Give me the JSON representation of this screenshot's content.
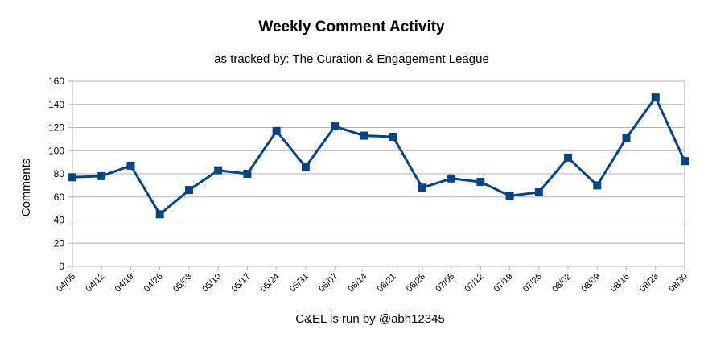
{
  "chart_data": {
    "type": "line",
    "title": "Weekly Comment Activity",
    "subtitle": "as tracked by: The Curation & Engagement League",
    "xlabel": "C&EL is run by @abh12345",
    "ylabel": "Comments",
    "ylim": [
      0,
      160
    ],
    "yticks": [
      0,
      20,
      40,
      60,
      80,
      100,
      120,
      140,
      160
    ],
    "grid": true,
    "categories": [
      "04/05",
      "04/12",
      "04/19",
      "04/26",
      "05/03",
      "05/10",
      "05/17",
      "05/24",
      "05/31",
      "06/07",
      "06/14",
      "06/21",
      "06/28",
      "07/05",
      "07/12",
      "07/19",
      "07/26",
      "08/02",
      "08/09",
      "08/16",
      "08/23",
      "08/30"
    ],
    "series": [
      {
        "color": "#004586",
        "values": [
          77,
          78,
          87,
          45,
          66,
          83,
          80,
          117,
          86,
          121,
          113,
          112,
          68,
          76,
          73,
          61,
          64,
          94,
          70,
          111,
          146,
          91
        ]
      }
    ]
  }
}
